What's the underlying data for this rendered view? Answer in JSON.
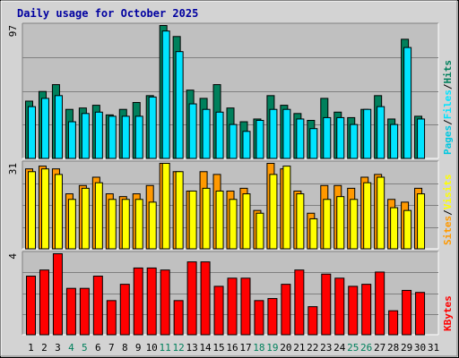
{
  "title": "Daily usage for October 2025",
  "colors": {
    "hits": "#00805c",
    "files": "#00e4ff",
    "pages": "#00c8e0",
    "visits": "#ffff00",
    "sites": "#ff9900",
    "kbytes": "#ff0000",
    "title": "#0000a0",
    "weekend": "#00805c",
    "weekday": "#000000",
    "panel": "#c0c0c0",
    "background": "#d3d3d3"
  },
  "chart_data": [
    {
      "type": "bar",
      "panel": "hits-files-pages",
      "ylim": [
        0,
        97
      ],
      "ymax_label": "97",
      "legend": [
        {
          "name": "Pages",
          "key": "pages"
        },
        {
          "name": "/",
          "key": "sep"
        },
        {
          "name": "Files",
          "key": "files"
        },
        {
          "name": "/",
          "key": "sep"
        },
        {
          "name": "Hits",
          "key": "hits"
        }
      ],
      "series": [
        {
          "name": "Hits",
          "values": [
            42,
            49,
            54,
            36,
            37,
            39,
            32,
            36,
            41,
            46,
            97,
            89,
            50,
            44,
            54,
            37,
            27,
            29,
            46,
            39,
            33,
            28,
            44,
            34,
            30,
            36,
            46,
            29,
            87,
            31,
            0
          ]
        },
        {
          "name": "Files",
          "values": [
            38,
            44,
            46,
            27,
            33,
            34,
            31,
            31,
            31,
            45,
            93,
            78,
            40,
            36,
            34,
            25,
            20,
            28,
            36,
            36,
            29,
            22,
            30,
            30,
            25,
            36,
            38,
            25,
            81,
            29,
            0
          ]
        }
      ]
    },
    {
      "type": "bar",
      "panel": "visits-sites",
      "ylim": [
        0,
        31
      ],
      "ymax_label": "31",
      "legend": [
        {
          "name": "Sites",
          "key": "sites"
        },
        {
          "name": "/",
          "key": "sep"
        },
        {
          "name": "Visits",
          "key": "visits"
        }
      ],
      "series": [
        {
          "name": "Visits",
          "values": [
            28,
            29,
            27,
            18,
            22,
            24,
            18,
            18,
            18,
            17,
            31,
            28,
            21,
            22,
            21,
            18,
            20,
            13,
            27,
            30,
            20,
            11,
            18,
            19,
            18,
            24,
            26,
            15,
            14,
            20,
            0
          ]
        },
        {
          "name": "Sites",
          "values": [
            29,
            30,
            29,
            20,
            23,
            26,
            20,
            19,
            20,
            23,
            31,
            28,
            21,
            28,
            27,
            21,
            22,
            14,
            31,
            29,
            21,
            13,
            23,
            23,
            22,
            26,
            27,
            18,
            17,
            22,
            0
          ]
        }
      ]
    },
    {
      "type": "bar",
      "panel": "kbytes",
      "ylim": [
        0,
        4
      ],
      "ymax_label": "4",
      "legend": [
        {
          "name": "KBytes",
          "key": "kbytes"
        }
      ],
      "series": [
        {
          "name": "KBytes",
          "values": [
            2.9,
            3.2,
            4.0,
            2.3,
            2.3,
            2.9,
            1.7,
            2.5,
            3.3,
            3.3,
            3.2,
            1.7,
            3.6,
            3.6,
            2.4,
            2.8,
            2.8,
            1.7,
            1.8,
            2.5,
            3.2,
            1.4,
            3.0,
            2.8,
            2.4,
            2.5,
            3.1,
            1.2,
            2.2,
            2.1,
            0
          ]
        }
      ]
    }
  ],
  "x_axis": {
    "days": [
      "1",
      "2",
      "3",
      "4",
      "5",
      "6",
      "7",
      "8",
      "9",
      "10",
      "11",
      "12",
      "13",
      "14",
      "15",
      "16",
      "17",
      "18",
      "19",
      "20",
      "21",
      "22",
      "23",
      "24",
      "25",
      "26",
      "27",
      "28",
      "29",
      "30",
      "31"
    ],
    "weekend_days": [
      "4",
      "5",
      "11",
      "12",
      "18",
      "19",
      "25",
      "26"
    ]
  }
}
